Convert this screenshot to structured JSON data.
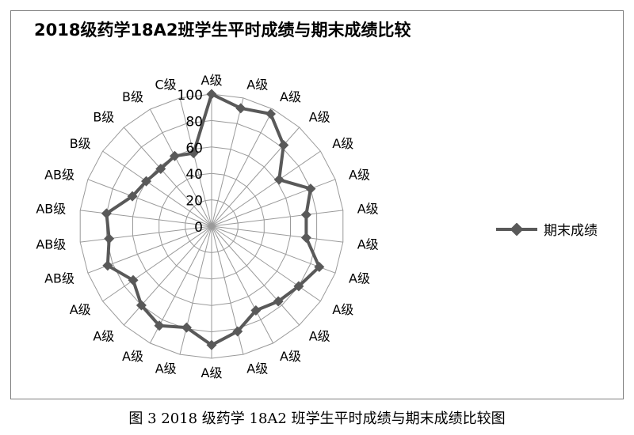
{
  "chart_data": {
    "type": "radar",
    "title": "2018级药学18A2班学生平时成绩与期末成绩比较",
    "categories": [
      "A级",
      "A级",
      "A级",
      "A级",
      "A级",
      "A级",
      "A级",
      "A级",
      "A级",
      "A级",
      "A级",
      "A级",
      "A级",
      "A级",
      "A级",
      "A级",
      "A级",
      "A级",
      "AB级",
      "AB级",
      "AB级",
      "AB级",
      "B级",
      "B级",
      "B级",
      "C级"
    ],
    "radial_ticks": [
      "0",
      "20",
      "40",
      "60",
      "80",
      "100"
    ],
    "rmax": 100,
    "series": [
      {
        "name": "期末成绩",
        "color": "#595959",
        "marker": "diamond",
        "values": [
          100,
          92,
          96,
          82,
          62,
          80,
          72,
          72,
          87,
          80,
          76,
          72,
          82,
          90,
          79,
          85,
          80,
          72,
          84,
          78,
          80,
          64,
          60,
          58,
          60,
          57
        ]
      }
    ],
    "legend_position": "right",
    "grid": true
  },
  "caption": "图 3  2018 级药学 18A2 班学生平时成绩与期末成绩比较图"
}
